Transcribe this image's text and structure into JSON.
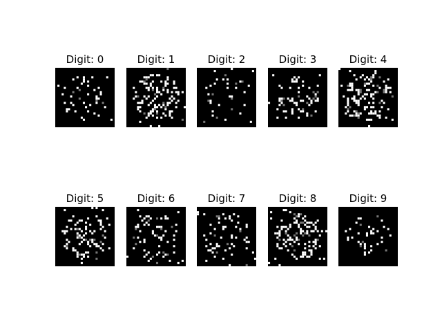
{
  "background_color": "#ffffff",
  "image_background_color": "#000000",
  "pixel_color": "#ffffff",
  "panels": [
    {
      "title": "Digit: 0"
    },
    {
      "title": "Digit: 1"
    },
    {
      "title": "Digit: 2"
    },
    {
      "title": "Digit: 3"
    },
    {
      "title": "Digit: 4"
    },
    {
      "title": "Digit: 5"
    },
    {
      "title": "Digit: 6"
    },
    {
      "title": "Digit: 7"
    },
    {
      "title": "Digit: 8"
    },
    {
      "title": "Digit: 9"
    }
  ]
}
